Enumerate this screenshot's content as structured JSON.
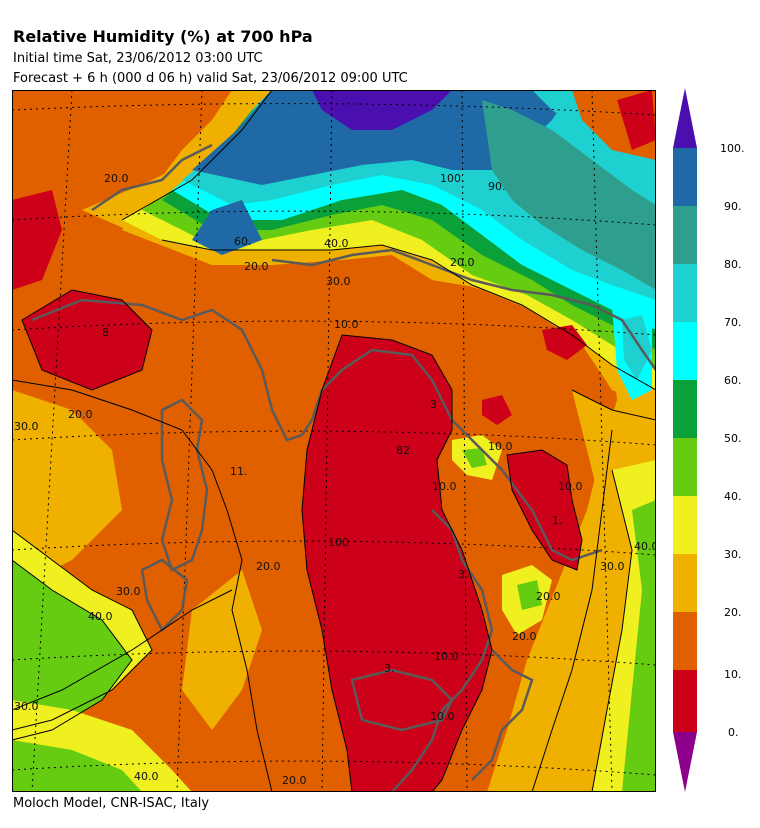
{
  "header": {
    "title": "Relative Humidity (%) at 700 hPa",
    "initial_time": "Initial time  Sat, 23/06/2012  03:00 UTC",
    "forecast": "Forecast +   6 h  (000 d 06 h)  valid Sat, 23/06/2012 09:00 UTC"
  },
  "footer": {
    "credit": "Moloch Model, CNR-ISAC, Italy"
  },
  "colorbar": {
    "labels": [
      "100.",
      "90.",
      "80.",
      "70.",
      "60.",
      "50.",
      "40.",
      "30.",
      "20.",
      "10.",
      "0."
    ],
    "colors": {
      "over": "#4b0fb0",
      "90_100": "#1f6aa6",
      "80_90": "#2e9f8f",
      "70_80": "#1fd0d0",
      "60_70": "#00ffff",
      "50_60": "#0aa03a",
      "40_50": "#66cc11",
      "30_40": "#f0f020",
      "20_30": "#f0b000",
      "10_20": "#e06000",
      "0_10": "#cc0018",
      "under": "#8c008c"
    }
  },
  "contour_labels": [
    "20.0",
    "90.",
    "60.",
    "100.",
    "40.0",
    "20.0",
    "30.0",
    "10.0",
    "20.0",
    "8",
    "20.0",
    "30.0",
    "11.",
    "3",
    "82.",
    "10.0",
    "1.",
    "10.0",
    "20.0",
    "30.0",
    "40.0",
    "3.",
    "100",
    "30.0",
    "10.0",
    "20.0",
    "3.",
    "40.0",
    "30.0",
    "20.0",
    "40.0",
    "20.0",
    "10.0",
    "10.0"
  ]
}
